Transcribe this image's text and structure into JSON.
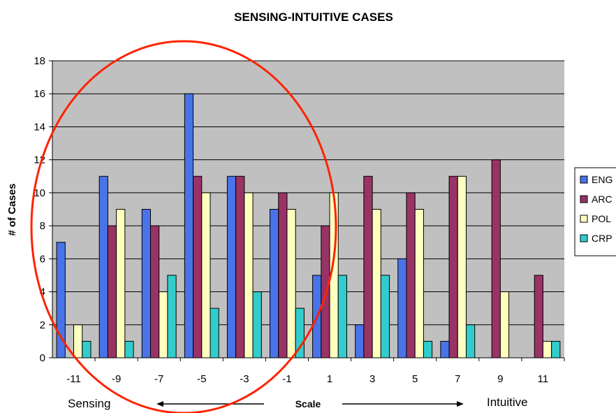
{
  "chart_data": {
    "type": "bar",
    "title": "SENSING-INTUITIVE CASES",
    "ylabel": "# of Cases",
    "xlabel": "Scale",
    "ylim": [
      0,
      18
    ],
    "yticks": [
      0,
      2,
      4,
      6,
      8,
      10,
      12,
      14,
      16,
      18
    ],
    "categories": [
      "-11",
      "-9",
      "-7",
      "-5",
      "-3",
      "-1",
      "1",
      "3",
      "5",
      "7",
      "9",
      "11"
    ],
    "series": [
      {
        "name": "ENG",
        "color": "#4a73e8",
        "values": [
          7,
          11,
          9,
          16,
          11,
          9,
          5,
          2,
          6,
          1,
          0,
          0
        ]
      },
      {
        "name": "ARC",
        "color": "#993366",
        "values": [
          0,
          8,
          8,
          11,
          11,
          10,
          8,
          11,
          10,
          11,
          12,
          5
        ]
      },
      {
        "name": "POL",
        "color": "#ffffc0",
        "values": [
          2,
          9,
          4,
          10,
          10,
          9,
          10,
          9,
          9,
          11,
          4,
          1
        ]
      },
      {
        "name": "CRP",
        "color": "#33cccc",
        "values": [
          1,
          1,
          5,
          3,
          4,
          3,
          5,
          5,
          1,
          2,
          0,
          1
        ]
      }
    ],
    "grid": true,
    "legend_position": "right",
    "plot_background": "#c0c0c0",
    "left_end_label": "Sensing",
    "right_end_label": "Intuitive",
    "annotation": "red ellipse around sensing side"
  }
}
